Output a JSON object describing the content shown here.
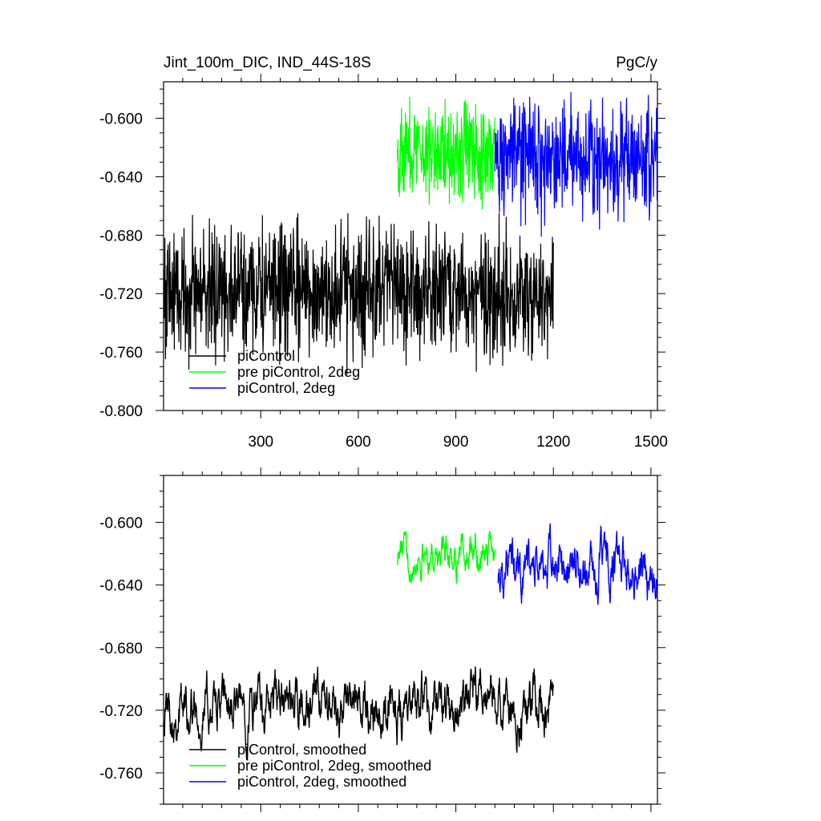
{
  "chart_data": [
    {
      "type": "line",
      "title": "Jint_100m_DIC, IND_44S-18S",
      "units": "PgC/y",
      "xlim": [
        1,
        1520
      ],
      "ylim": [
        -0.8,
        -0.575
      ],
      "x_ticks": [
        300,
        600,
        900,
        1200,
        1500
      ],
      "x_tick_labels": [
        "300",
        "600",
        "900",
        "1200",
        "1500"
      ],
      "y_ticks": [
        -0.6,
        -0.64,
        -0.68,
        -0.72,
        -0.76,
        -0.8
      ],
      "y_tick_labels": [
        "-0.600",
        "-0.640",
        "-0.680",
        "-0.720",
        "-0.760",
        "-0.800"
      ],
      "legend_position": "bottom-left",
      "series": [
        {
          "name": "piControl",
          "color": "#000000",
          "x_start": 1,
          "x_end": 1200,
          "mean": -0.718,
          "noise": 0.022,
          "min": -0.796,
          "max": -0.665
        },
        {
          "name": "pre piControl, 2deg",
          "color": "#00ff00",
          "x_start": 720,
          "x_end": 1020,
          "mean": -0.622,
          "noise": 0.016,
          "min": -0.68,
          "max": -0.58
        },
        {
          "name": "piControl, 2deg",
          "color": "#0000ff",
          "x_start": 1020,
          "x_end": 1520,
          "mean": -0.627,
          "noise": 0.019,
          "min": -0.705,
          "max": -0.575
        }
      ]
    },
    {
      "type": "line",
      "xlim": [
        1,
        1520
      ],
      "ylim": [
        -0.78,
        -0.57
      ],
      "x_ticks": [
        300,
        600,
        900,
        1200,
        1500
      ],
      "y_ticks": [
        -0.6,
        -0.64,
        -0.68,
        -0.72,
        -0.76
      ],
      "y_tick_labels": [
        "-0.600",
        "-0.640",
        "-0.680",
        "-0.720",
        "-0.760"
      ],
      "legend_position": "bottom-left",
      "series": [
        {
          "name": "piControl, smoothed",
          "color": "#000000",
          "x_start": 1,
          "x_end": 1200,
          "mean": -0.718,
          "noise": 0.01,
          "min": -0.752,
          "max": -0.69
        },
        {
          "name": "pre piControl, 2deg, smoothed",
          "color": "#00ff00",
          "x_start": 720,
          "x_end": 1020,
          "mean": -0.62,
          "noise": 0.007,
          "min": -0.647,
          "max": -0.606
        },
        {
          "name": "piControl, 2deg, smoothed",
          "color": "#0000ff",
          "x_start": 1030,
          "x_end": 1520,
          "mean": -0.63,
          "noise": 0.01,
          "min": -0.665,
          "max": -0.597
        }
      ]
    }
  ]
}
